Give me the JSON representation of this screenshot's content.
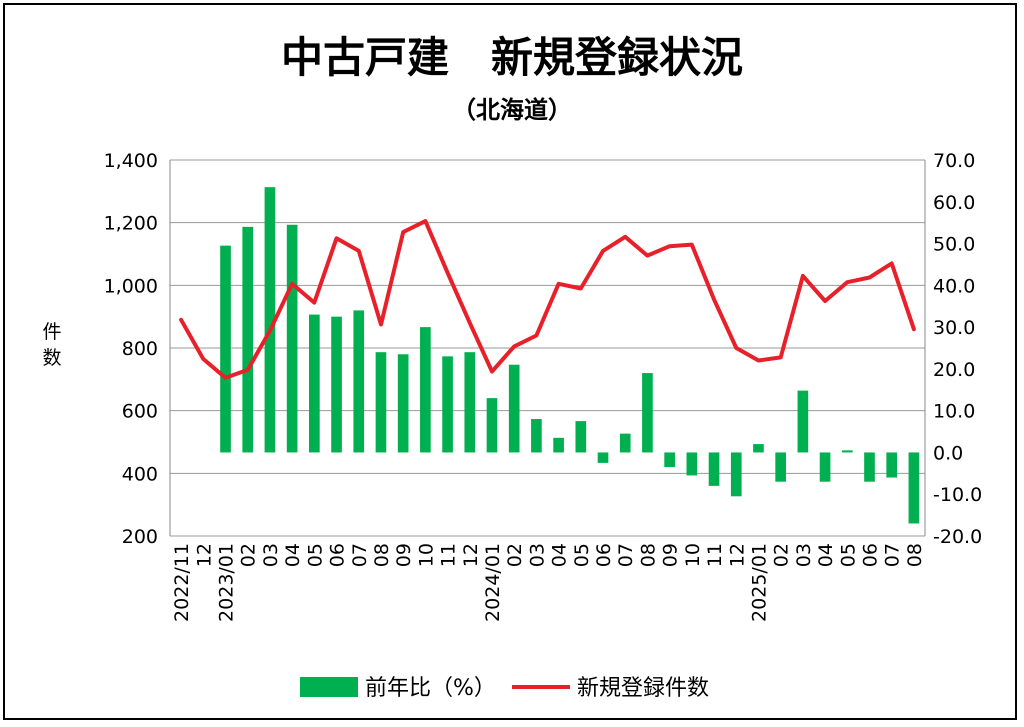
{
  "chart_data": {
    "type": "bar+line",
    "title": "中古戸建　新規登録状況",
    "subtitle": "（北海道）",
    "ylabel": "件数",
    "x": [
      "2022/11",
      "12",
      "2023/01",
      "02",
      "03",
      "04",
      "05",
      "06",
      "07",
      "08",
      "09",
      "10",
      "11",
      "12",
      "2024/01",
      "02",
      "03",
      "04",
      "05",
      "06",
      "07",
      "08",
      "09",
      "10",
      "11",
      "12",
      "2025/01",
      "02",
      "03",
      "04",
      "05",
      "06",
      "07",
      "08"
    ],
    "y_left": {
      "min": 200,
      "max": 1400,
      "ticks": [
        "200",
        "400",
        "600",
        "800",
        "1,000",
        "1,200",
        "1,400"
      ],
      "tick_values": [
        200,
        400,
        600,
        800,
        1000,
        1200,
        1400
      ]
    },
    "y_right": {
      "min": -20,
      "max": 70,
      "ticks": [
        "-20.0",
        "-10.0",
        "0.0",
        "10.0",
        "20.0",
        "30.0",
        "40.0",
        "50.0",
        "60.0",
        "70.0"
      ],
      "tick_values": [
        -20,
        -10,
        0,
        10,
        20,
        30,
        40,
        50,
        60,
        70
      ],
      "negative_color": "#e8202a"
    },
    "series": [
      {
        "name": "前年比（%）",
        "type": "bar",
        "axis": "right",
        "color": "#00b050",
        "values": [
          null,
          null,
          49.5,
          54.0,
          63.5,
          54.5,
          33.0,
          32.5,
          34.0,
          24.0,
          23.5,
          30.0,
          23.0,
          24.0,
          13.0,
          21.0,
          8.0,
          3.5,
          7.5,
          -2.5,
          4.5,
          19.0,
          -3.5,
          -5.5,
          -8.0,
          -10.5,
          2.0,
          -7.0,
          14.8,
          -7.0,
          0.5,
          -7.0,
          -6.0,
          -17.0
        ]
      },
      {
        "name": "新規登録件数",
        "type": "line",
        "axis": "left",
        "color": "#e8202a",
        "values": [
          890,
          765,
          705,
          730,
          855,
          1005,
          945,
          1150,
          1110,
          875,
          1170,
          1205,
          1040,
          880,
          725,
          805,
          840,
          1005,
          990,
          1110,
          1155,
          1095,
          1125,
          1130,
          955,
          800,
          760,
          770,
          1030,
          950,
          1010,
          1025,
          1070,
          860
        ]
      }
    ],
    "grid": true,
    "legend_position": "bottom"
  }
}
